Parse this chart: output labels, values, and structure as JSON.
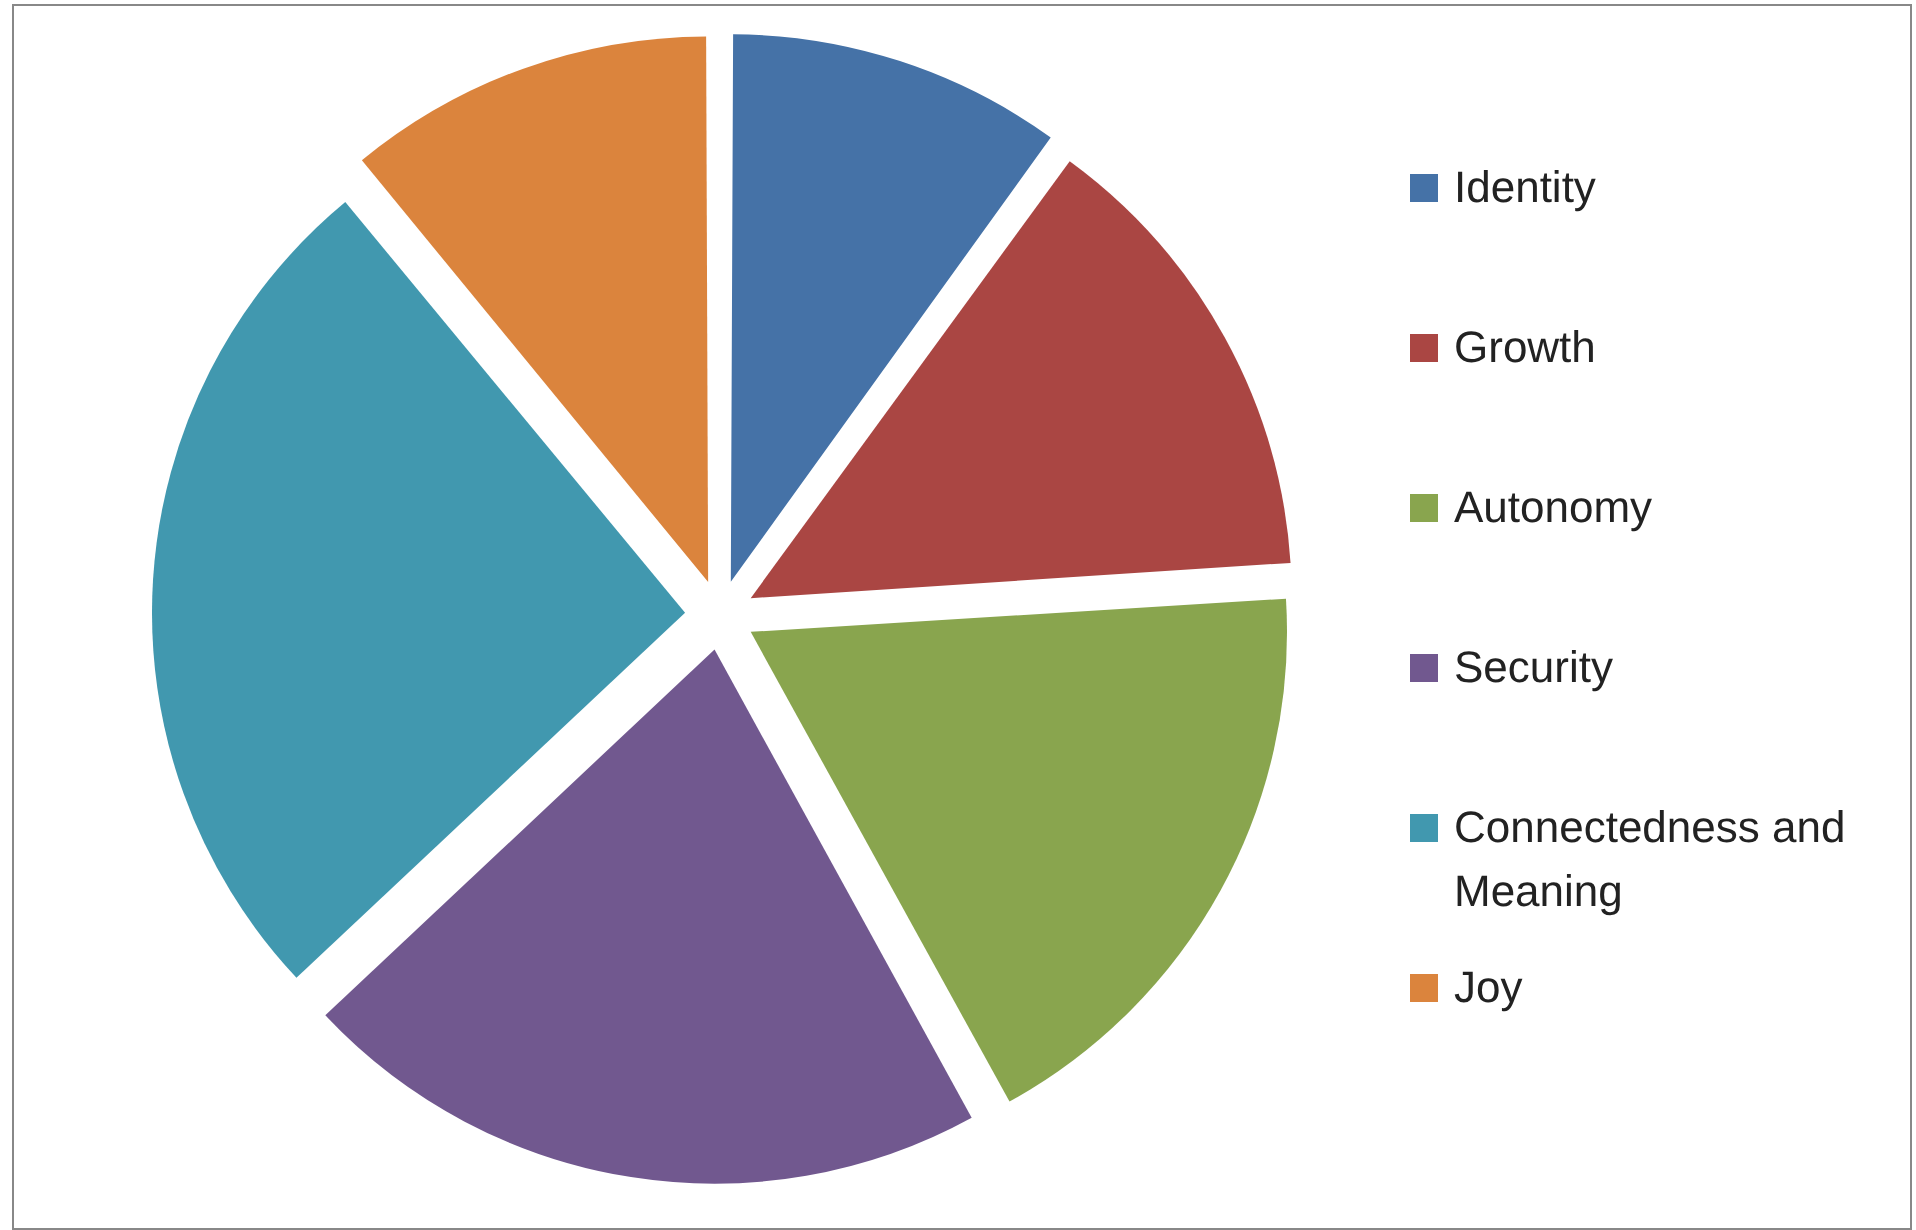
{
  "chart_data": {
    "type": "pie",
    "categories": [
      "Identity",
      "Growth",
      "Autonomy",
      "Security",
      "Connectedness and Meaning",
      "Joy"
    ],
    "values": [
      10,
      14,
      18,
      21,
      26,
      11
    ],
    "colors": [
      "#4572a7",
      "#aa4643",
      "#89a54e",
      "#71588f",
      "#4198af",
      "#db843d"
    ],
    "legend": "right"
  }
}
